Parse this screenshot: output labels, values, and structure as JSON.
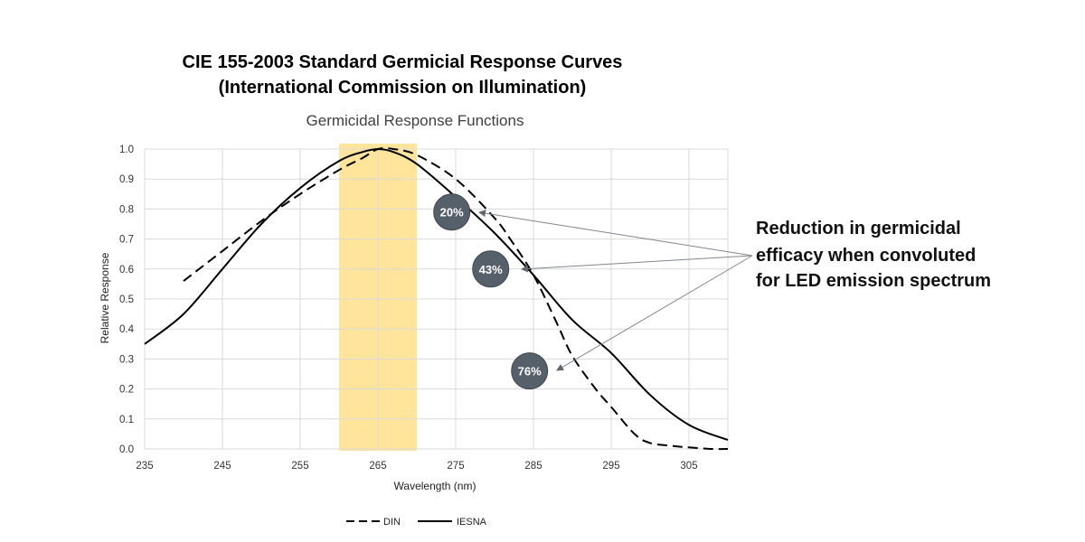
{
  "header": {
    "title_line1": "CIE 155-2003 Standard Germicial Response Curves",
    "title_line2": "(International Commission on Illumination)"
  },
  "annotation": {
    "line1": "Reduction in germicidal",
    "line2": "efficacy when convoluted",
    "line3": "for LED emission spectrum"
  },
  "colors": {
    "highlight_band": "#FFE08A",
    "badge": "#56606B",
    "grid": "#D9D9D9",
    "curve": "#000000",
    "arrow": "#7F8790"
  },
  "chart_data": {
    "type": "line",
    "title": "Germicidal Response Functions",
    "xlabel": "Wavelength (nm)",
    "ylabel": "Relative Response",
    "xlim": [
      235,
      310
    ],
    "ylim": [
      0,
      1.0
    ],
    "xticks": [
      235,
      245,
      255,
      265,
      275,
      285,
      295,
      305
    ],
    "yticks": [
      0.0,
      0.1,
      0.2,
      0.3,
      0.4,
      0.5,
      0.6,
      0.7,
      0.8,
      0.9,
      1.0
    ],
    "grid": true,
    "legend_position": "bottom-center",
    "highlight_band": [
      260,
      270
    ],
    "series": [
      {
        "name": "DIN",
        "style": "dashed",
        "x": [
          240,
          245,
          250,
          255,
          260,
          263,
          265,
          267,
          270,
          275,
          280,
          282,
          285,
          288,
          290,
          293,
          295,
          298,
          300,
          303,
          305,
          308,
          310
        ],
        "y": [
          0.56,
          0.66,
          0.76,
          0.85,
          0.93,
          0.97,
          1.0,
          1.0,
          0.98,
          0.9,
          0.77,
          0.7,
          0.58,
          0.42,
          0.31,
          0.2,
          0.14,
          0.05,
          0.02,
          0.01,
          0.005,
          0.0,
          0.0
        ]
      },
      {
        "name": "IESNA",
        "style": "solid",
        "x": [
          235,
          240,
          245,
          250,
          255,
          260,
          263,
          265,
          267,
          270,
          275,
          280,
          285,
          290,
          295,
          300,
          305,
          310
        ],
        "y": [
          0.35,
          0.45,
          0.6,
          0.75,
          0.87,
          0.96,
          0.99,
          1.0,
          0.99,
          0.95,
          0.84,
          0.72,
          0.58,
          0.43,
          0.32,
          0.18,
          0.08,
          0.03
        ]
      }
    ],
    "annotations": [
      {
        "label": "20%",
        "x": 274.5,
        "y": 0.79
      },
      {
        "label": "43%",
        "x": 279.5,
        "y": 0.6
      },
      {
        "label": "76%",
        "x": 284.5,
        "y": 0.26
      }
    ]
  }
}
